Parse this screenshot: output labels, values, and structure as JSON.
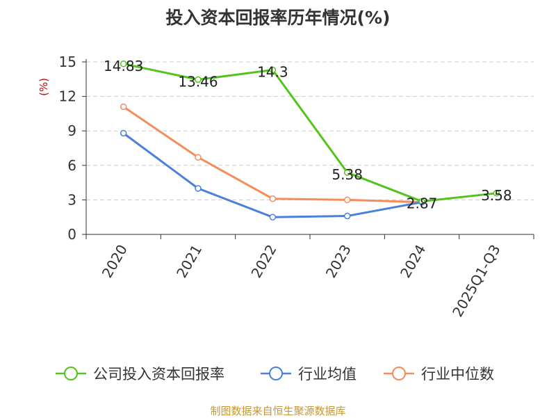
{
  "chart_data": {
    "type": "line",
    "title": "投入资本回报率历年情况(%)",
    "ylabel": "(%)",
    "categories": [
      "2020",
      "2021",
      "2022",
      "2023",
      "2024",
      "2025Q1-Q3"
    ],
    "ylim": [
      0,
      15
    ],
    "yticks": [
      0,
      3,
      6,
      9,
      12,
      15
    ],
    "grid": true,
    "legend_position": "bottom",
    "series": [
      {
        "name": "公司投入资本回报率",
        "color": "#52c41a",
        "values": [
          14.83,
          13.46,
          14.3,
          5.38,
          2.87,
          3.58
        ],
        "labels": [
          "14.83",
          "13.46",
          "14.3",
          "5.38",
          "2.87",
          "3.58"
        ]
      },
      {
        "name": "行业均值",
        "color": "#4a7fdc",
        "values": [
          8.8,
          4.0,
          1.5,
          1.6,
          2.8,
          null
        ]
      },
      {
        "name": "行业中位数",
        "color": "#f58d5a",
        "values": [
          11.1,
          6.7,
          3.1,
          3.0,
          2.8,
          null
        ]
      }
    ]
  },
  "source": "制图数据来自恒生聚源数据库"
}
